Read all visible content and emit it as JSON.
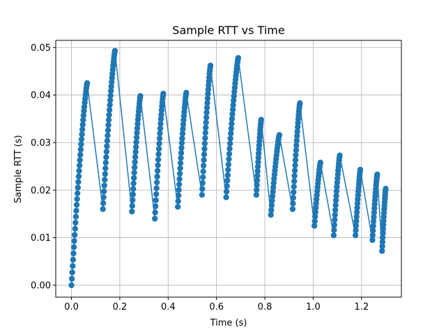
{
  "chart_data": {
    "type": "line",
    "title": "Sample RTT vs Time",
    "xlabel": "Time (s)",
    "ylabel": "Sample RTT (s)",
    "xlim": [
      -0.065,
      1.365
    ],
    "ylim": [
      -0.0025,
      0.0515
    ],
    "xticks": [
      0.0,
      0.2,
      0.4,
      0.6,
      0.8,
      1.0,
      1.2
    ],
    "xtick_labels": [
      "0.0",
      "0.2",
      "0.4",
      "0.6",
      "0.8",
      "1.0",
      "1.2"
    ],
    "yticks": [
      0.0,
      0.01,
      0.02,
      0.03,
      0.04,
      0.05
    ],
    "ytick_labels": [
      "0.00",
      "0.01",
      "0.02",
      "0.03",
      "0.04",
      "0.05"
    ],
    "grid": true,
    "series": [
      {
        "color": "#1f77b4",
        "marker": "circle",
        "ramps": [
          {
            "x_start": 0.0,
            "x_end": 0.065,
            "y_start": 0.0,
            "y_end": 0.0425,
            "n": 40
          },
          {
            "x_start": 0.13,
            "x_end": 0.18,
            "y_start": 0.016,
            "y_end": 0.0493,
            "n": 34
          },
          {
            "x_start": 0.25,
            "x_end": 0.285,
            "y_start": 0.0155,
            "y_end": 0.0398,
            "n": 26
          },
          {
            "x_start": 0.345,
            "x_end": 0.38,
            "y_start": 0.014,
            "y_end": 0.0403,
            "n": 26
          },
          {
            "x_start": 0.44,
            "x_end": 0.475,
            "y_start": 0.0165,
            "y_end": 0.0405,
            "n": 26
          },
          {
            "x_start": 0.54,
            "x_end": 0.575,
            "y_start": 0.019,
            "y_end": 0.0462,
            "n": 28
          },
          {
            "x_start": 0.64,
            "x_end": 0.69,
            "y_start": 0.0185,
            "y_end": 0.0478,
            "n": 32
          },
          {
            "x_start": 0.765,
            "x_end": 0.785,
            "y_start": 0.019,
            "y_end": 0.0348,
            "n": 20
          },
          {
            "x_start": 0.825,
            "x_end": 0.86,
            "y_start": 0.0148,
            "y_end": 0.0316,
            "n": 22
          },
          {
            "x_start": 0.915,
            "x_end": 0.945,
            "y_start": 0.016,
            "y_end": 0.0383,
            "n": 24
          },
          {
            "x_start": 1.005,
            "x_end": 1.03,
            "y_start": 0.0125,
            "y_end": 0.0258,
            "n": 18
          },
          {
            "x_start": 1.085,
            "x_end": 1.11,
            "y_start": 0.0105,
            "y_end": 0.0273,
            "n": 20
          },
          {
            "x_start": 1.175,
            "x_end": 1.195,
            "y_start": 0.0105,
            "y_end": 0.0243,
            "n": 18
          },
          {
            "x_start": 1.245,
            "x_end": 1.265,
            "y_start": 0.0095,
            "y_end": 0.0233,
            "n": 18
          },
          {
            "x_start": 1.285,
            "x_end": 1.3,
            "y_start": 0.0072,
            "y_end": 0.0203,
            "n": 18
          }
        ]
      }
    ]
  }
}
